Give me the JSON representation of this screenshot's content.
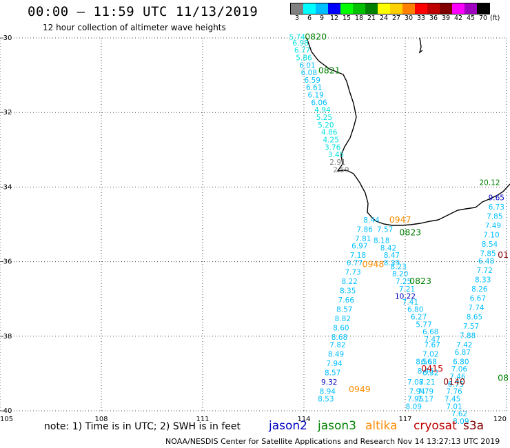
{
  "header": {
    "title": "00:00 – 11:59 UTC 11/13/2019",
    "subtitle": "12 hour collection of altimeter wave heights"
  },
  "legend": {
    "unit": "(ft)",
    "entries": [
      {
        "label": "3",
        "color": "#808080"
      },
      {
        "label": "6",
        "color": "#00ffff"
      },
      {
        "label": "9",
        "color": "#00bfff"
      },
      {
        "label": "12",
        "color": "#0000ff"
      },
      {
        "label": "15",
        "color": "#00ff00"
      },
      {
        "label": "18",
        "color": "#00c000"
      },
      {
        "label": "21",
        "color": "#008000"
      },
      {
        "label": "24",
        "color": "#ffff00"
      },
      {
        "label": "27",
        "color": "#ffd000"
      },
      {
        "label": "30",
        "color": "#ff8000"
      },
      {
        "label": "33",
        "color": "#ff0000"
      },
      {
        "label": "36",
        "color": "#c00000"
      },
      {
        "label": "39",
        "color": "#800000"
      },
      {
        "label": "42",
        "color": "#ff00ff"
      },
      {
        "label": "45",
        "color": "#a000c0"
      },
      {
        "label": "70",
        "color": "#000000"
      }
    ]
  },
  "map": {
    "lon_range": [
      105,
      120
    ],
    "lat_range": [
      30,
      40
    ],
    "lon_ticks": [
      "105",
      "108",
      "111",
      "114",
      "117",
      "120"
    ],
    "lat_ticks": [
      "30",
      "32",
      "34",
      "36",
      "38",
      "40"
    ],
    "colors": {
      "jason2": "#0000c0",
      "jason3": "#008000",
      "altika": "#ff8c00",
      "cryosat": "#c00000",
      "s3a": "#800000",
      "swh_low": "#00bfff",
      "swh_vlow": "#00e0e0",
      "swh_gray": "#808080"
    }
  },
  "tracks": [
    {
      "time": "0820",
      "satellite": "jason3",
      "time_pos": [
        114.35,
        30.05
      ],
      "points": [
        {
          "lon": 113.8,
          "lat": 30.05,
          "swh": "5.74",
          "c": "swh_vlow"
        },
        {
          "lon": 113.9,
          "lat": 30.2,
          "swh": "6.98",
          "c": "swh_vlow"
        },
        {
          "lon": 113.95,
          "lat": 30.4,
          "swh": "6.77",
          "c": "swh_vlow"
        },
        {
          "lon": 114.0,
          "lat": 30.6,
          "swh": "5.86",
          "c": "swh_vlow"
        },
        {
          "lon": 114.1,
          "lat": 30.8,
          "swh": "6.01",
          "c": "swh_low"
        },
        {
          "lon": 114.15,
          "lat": 31.0,
          "swh": "6.08",
          "c": "swh_low"
        },
        {
          "lon": 114.25,
          "lat": 31.2,
          "swh": "6.59",
          "c": "swh_low"
        },
        {
          "lon": 114.3,
          "lat": 31.4,
          "swh": "6.61",
          "c": "swh_low"
        },
        {
          "lon": 114.35,
          "lat": 31.6,
          "swh": "6.19",
          "c": "swh_low"
        },
        {
          "lon": 114.45,
          "lat": 31.8,
          "swh": "6.06",
          "c": "swh_low"
        },
        {
          "lon": 114.55,
          "lat": 32.0,
          "swh": "4.94",
          "c": "swh_vlow"
        },
        {
          "lon": 114.6,
          "lat": 32.2,
          "swh": "5.25",
          "c": "swh_vlow"
        },
        {
          "lon": 114.65,
          "lat": 32.4,
          "swh": "5.20",
          "c": "swh_vlow"
        },
        {
          "lon": 114.75,
          "lat": 32.6,
          "swh": "4.86",
          "c": "swh_vlow"
        },
        {
          "lon": 114.8,
          "lat": 32.8,
          "swh": "4.25",
          "c": "swh_vlow"
        },
        {
          "lon": 114.85,
          "lat": 33.0,
          "swh": "3.76",
          "c": "swh_vlow"
        },
        {
          "lon": 114.95,
          "lat": 33.2,
          "swh": "3.45",
          "c": "swh_vlow"
        },
        {
          "lon": 115.0,
          "lat": 33.4,
          "swh": "2.91",
          "c": "swh_gray"
        },
        {
          "lon": 115.1,
          "lat": 33.6,
          "swh": "2.59",
          "c": "swh_gray"
        }
      ]
    },
    {
      "time": "0821",
      "satellite": "jason3",
      "time_pos": [
        114.75,
        30.95
      ],
      "points": []
    },
    {
      "time": "0947",
      "satellite": "altika",
      "time_pos": [
        116.85,
        34.95
      ],
      "points": [
        {
          "lon": 116.0,
          "lat": 34.95,
          "swh": "8.44",
          "c": "swh_low"
        },
        {
          "lon": 115.8,
          "lat": 35.2,
          "swh": "7.86",
          "c": "swh_low"
        },
        {
          "lon": 116.4,
          "lat": 35.2,
          "swh": "7.57",
          "c": "swh_low"
        },
        {
          "lon": 115.75,
          "lat": 35.45,
          "swh": "7.81",
          "c": "swh_low"
        },
        {
          "lon": 116.3,
          "lat": 35.5,
          "swh": "8.18",
          "c": "swh_low"
        },
        {
          "lon": 115.65,
          "lat": 35.65,
          "swh": "6.97",
          "c": "swh_low"
        },
        {
          "lon": 116.5,
          "lat": 35.7,
          "swh": "8.42",
          "c": "swh_low"
        },
        {
          "lon": 115.6,
          "lat": 35.9,
          "swh": "7.18",
          "c": "swh_low"
        },
        {
          "lon": 116.6,
          "lat": 35.9,
          "swh": "8.47",
          "c": "swh_low"
        },
        {
          "lon": 115.5,
          "lat": 36.1,
          "swh": "6.77",
          "c": "swh_low"
        },
        {
          "lon": 116.6,
          "lat": 36.1,
          "swh": "8.39",
          "c": "swh_low"
        },
        {
          "lon": 115.45,
          "lat": 36.35,
          "swh": "7.73",
          "c": "swh_low"
        },
        {
          "lon": 116.8,
          "lat": 36.2,
          "swh": "8.23",
          "c": "swh_low"
        },
        {
          "lon": 115.35,
          "lat": 36.6,
          "swh": "8.22",
          "c": "swh_low"
        },
        {
          "lon": 116.85,
          "lat": 36.4,
          "swh": "8.20",
          "c": "swh_low"
        },
        {
          "lon": 115.3,
          "lat": 36.85,
          "swh": "8.35",
          "c": "swh_low"
        },
        {
          "lon": 116.95,
          "lat": 36.6,
          "swh": "7.25",
          "c": "swh_low"
        },
        {
          "lon": 115.25,
          "lat": 37.1,
          "swh": "7.66",
          "c": "swh_low"
        },
        {
          "lon": 117.05,
          "lat": 36.8,
          "swh": "7.21",
          "c": "swh_low"
        },
        {
          "lon": 115.2,
          "lat": 37.35,
          "swh": "8.57",
          "c": "swh_low"
        },
        {
          "lon": 117.0,
          "lat": 37.0,
          "swh": "10.22",
          "c": "jason2"
        },
        {
          "lon": 115.15,
          "lat": 37.6,
          "swh": "8.82",
          "c": "swh_low"
        },
        {
          "lon": 117.15,
          "lat": 37.15,
          "swh": "7.41",
          "c": "swh_low"
        },
        {
          "lon": 115.1,
          "lat": 37.85,
          "swh": "8.60",
          "c": "swh_low"
        },
        {
          "lon": 117.3,
          "lat": 37.35,
          "swh": "6.80",
          "c": "swh_low"
        },
        {
          "lon": 115.05,
          "lat": 38.1,
          "swh": "8.68",
          "c": "swh_low"
        },
        {
          "lon": 117.4,
          "lat": 37.55,
          "swh": "6.27",
          "c": "swh_low"
        },
        {
          "lon": 115.0,
          "lat": 38.3,
          "swh": "7.82",
          "c": "swh_low"
        },
        {
          "lon": 117.55,
          "lat": 37.75,
          "swh": "5.77",
          "c": "swh_low"
        },
        {
          "lon": 114.95,
          "lat": 38.55,
          "swh": "8.49",
          "c": "swh_low"
        },
        {
          "lon": 117.75,
          "lat": 37.95,
          "swh": "6.68",
          "c": "swh_low"
        },
        {
          "lon": 114.9,
          "lat": 38.8,
          "swh": "7.94",
          "c": "swh_low"
        },
        {
          "lon": 117.8,
          "lat": 38.15,
          "swh": "7.47",
          "c": "swh_low"
        },
        {
          "lon": 114.85,
          "lat": 39.05,
          "swh": "8.57",
          "c": "swh_low"
        },
        {
          "lon": 117.8,
          "lat": 38.3,
          "swh": "7.67",
          "c": "swh_low"
        },
        {
          "lon": 114.75,
          "lat": 39.3,
          "swh": "9.32",
          "c": "jason2"
        },
        {
          "lon": 117.75,
          "lat": 38.55,
          "swh": "7.02",
          "c": "swh_low"
        },
        {
          "lon": 114.7,
          "lat": 39.55,
          "swh": "8.94",
          "c": "swh_low"
        },
        {
          "lon": 117.7,
          "lat": 38.75,
          "swh": "6.68",
          "c": "swh_low"
        },
        {
          "lon": 114.65,
          "lat": 39.75,
          "swh": "8.53",
          "c": "swh_low"
        }
      ]
    },
    {
      "time": "0948",
      "satellite": "altika",
      "time_pos": [
        116.05,
        36.15
      ],
      "points": []
    },
    {
      "time": "0949",
      "satellite": "altika",
      "time_pos": [
        115.65,
        39.5
      ],
      "points": []
    },
    {
      "time": "0823",
      "satellite": "jason3",
      "time_pos": [
        117.15,
        35.3
      ],
      "points": [
        {
          "lon": 119.5,
          "lat": 33.95,
          "swh": "20.12",
          "c": "jason3"
        },
        {
          "lon": 119.7,
          "lat": 34.35,
          "swh": "9.65",
          "c": "jason2"
        },
        {
          "lon": 119.7,
          "lat": 34.6,
          "swh": "6.73",
          "c": "swh_low"
        },
        {
          "lon": 119.65,
          "lat": 34.85,
          "swh": "7.85",
          "c": "swh_low"
        },
        {
          "lon": 119.6,
          "lat": 35.1,
          "swh": "7.49",
          "c": "swh_low"
        },
        {
          "lon": 119.55,
          "lat": 35.35,
          "swh": "7.10",
          "c": "swh_low"
        },
        {
          "lon": 119.5,
          "lat": 35.6,
          "swh": "8.54",
          "c": "swh_low"
        },
        {
          "lon": 119.45,
          "lat": 35.85,
          "swh": "7.85",
          "c": "swh_low"
        },
        {
          "lon": 119.4,
          "lat": 36.05,
          "swh": "6.48",
          "c": "swh_low"
        },
        {
          "lon": 119.35,
          "lat": 36.3,
          "swh": "7.72",
          "c": "swh_low"
        },
        {
          "lon": 119.3,
          "lat": 36.55,
          "swh": "8.33",
          "c": "swh_low"
        },
        {
          "lon": 119.2,
          "lat": 36.8,
          "swh": "8.26",
          "c": "swh_low"
        },
        {
          "lon": 119.15,
          "lat": 37.05,
          "swh": "6.67",
          "c": "swh_low"
        },
        {
          "lon": 119.1,
          "lat": 37.3,
          "swh": "7.74",
          "c": "swh_low"
        },
        {
          "lon": 119.05,
          "lat": 37.55,
          "swh": "8.65",
          "c": "swh_low"
        },
        {
          "lon": 118.95,
          "lat": 37.8,
          "swh": "7.57",
          "c": "swh_low"
        },
        {
          "lon": 118.85,
          "lat": 38.05,
          "swh": "7.88",
          "c": "swh_low"
        },
        {
          "lon": 118.75,
          "lat": 38.3,
          "swh": "7.42",
          "c": "swh_low"
        },
        {
          "lon": 118.7,
          "lat": 38.5,
          "swh": "6.87",
          "c": "swh_low"
        },
        {
          "lon": 118.65,
          "lat": 38.75,
          "swh": "6.80",
          "c": "swh_low"
        },
        {
          "lon": 118.6,
          "lat": 38.95,
          "swh": "7.06",
          "c": "swh_low"
        },
        {
          "lon": 118.55,
          "lat": 39.15,
          "swh": "7.46",
          "c": "swh_low"
        },
        {
          "lon": 118.5,
          "lat": 39.35,
          "swh": "6.75",
          "c": "swh_low"
        },
        {
          "lon": 118.45,
          "lat": 39.55,
          "swh": "7.76",
          "c": "swh_low"
        },
        {
          "lon": 118.4,
          "lat": 39.75,
          "swh": "7.45",
          "c": "swh_low"
        },
        {
          "lon": 118.45,
          "lat": 39.95,
          "swh": "7.01",
          "c": "swh_low"
        },
        {
          "lon": 118.6,
          "lat": 40.15,
          "swh": "7.62",
          "c": "swh_low"
        },
        {
          "lon": 118.65,
          "lat": 40.35,
          "swh": "8.09",
          "c": "swh_low"
        }
      ]
    },
    {
      "time": "0823",
      "satellite": "jason3",
      "time_pos": [
        117.45,
        36.6
      ],
      "points": []
    },
    {
      "time": "0415",
      "satellite": "cryosat",
      "time_pos": [
        117.8,
        38.95
      ],
      "points": [
        {
          "lon": 117.55,
          "lat": 38.75,
          "swh": "8.56",
          "c": "swh_low"
        },
        {
          "lon": 117.6,
          "lat": 39.0,
          "swh": "8.46",
          "c": "swh_low"
        },
        {
          "lon": 117.75,
          "lat": 39.05,
          "swh": "6.32",
          "c": "swh_low"
        },
        {
          "lon": 117.65,
          "lat": 39.3,
          "swh": "7.21",
          "c": "swh_low"
        },
        {
          "lon": 117.3,
          "lat": 39.3,
          "swh": "7.08",
          "c": "swh_low"
        },
        {
          "lon": 117.35,
          "lat": 39.55,
          "swh": "7.94",
          "c": "swh_low"
        },
        {
          "lon": 117.6,
          "lat": 39.55,
          "swh": "7.79",
          "c": "swh_low"
        },
        {
          "lon": 117.3,
          "lat": 39.75,
          "swh": "7.95",
          "c": "swh_low"
        },
        {
          "lon": 117.6,
          "lat": 39.75,
          "swh": "7.17",
          "c": "swh_low"
        },
        {
          "lon": 117.25,
          "lat": 39.95,
          "swh": "8.09",
          "c": "swh_low"
        }
      ]
    },
    {
      "time": "0140",
      "satellite": "s3a",
      "time_pos": [
        118.45,
        39.3
      ],
      "points": []
    },
    {
      "time": "01",
      "satellite": "s3a",
      "time_pos": [
        119.9,
        35.9
      ],
      "points": []
    },
    {
      "time": "08",
      "satellite": "jason3",
      "time_pos": [
        119.9,
        39.2
      ],
      "points": []
    }
  ],
  "footer": {
    "note": "note: 1) Time is in UTC; 2) SWH is in feet",
    "satellites": [
      {
        "name": "jason2",
        "color": "#0000c0"
      },
      {
        "name": "jason3",
        "color": "#008000"
      },
      {
        "name": "altika",
        "color": "#ff8c00"
      },
      {
        "name": "cryosat",
        "color": "#c00000"
      },
      {
        "name": "s3a",
        "color": "#800000"
      }
    ],
    "credit": "NOAA/NESDIS Center for Satellite Applications and Research    Nov 14 13:27:13 UTC 2019"
  }
}
